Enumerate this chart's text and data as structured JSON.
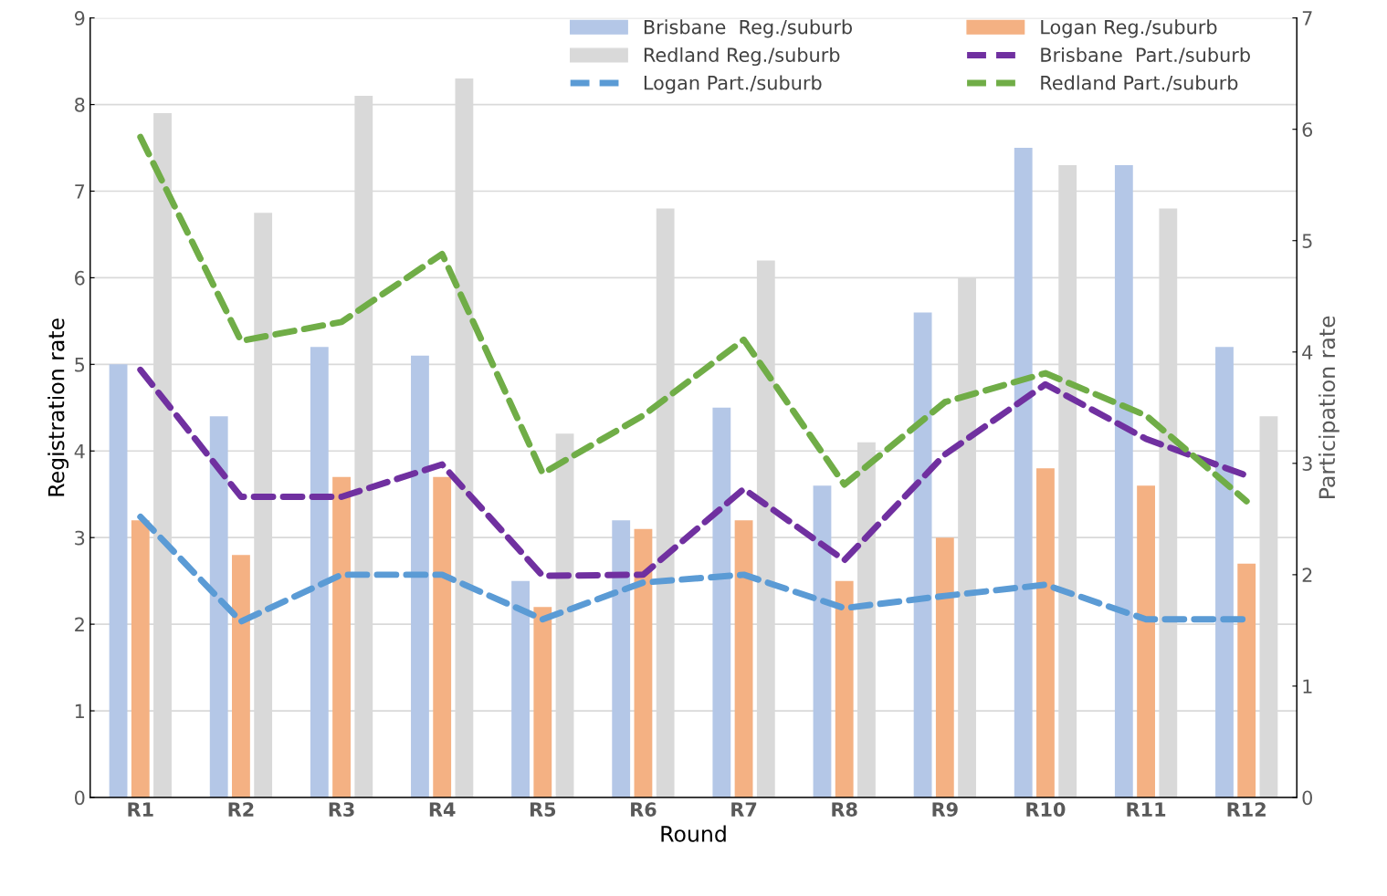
{
  "chart_data": {
    "type": "bar",
    "xlabel": "Round",
    "ylabel": "Registration rate",
    "y2label": "Participation rate",
    "categories": [
      "R1",
      "R2",
      "R3",
      "R4",
      "R5",
      "R6",
      "R7",
      "R8",
      "R9",
      "R10",
      "R11",
      "R12"
    ],
    "series": [
      {
        "name": "Brisbane  Reg./suburb",
        "color": "#b4c7e7",
        "values": [
          5.0,
          4.4,
          5.2,
          5.1,
          2.5,
          3.2,
          4.5,
          3.6,
          5.6,
          7.5,
          7.3,
          5.2
        ]
      },
      {
        "name": "Logan Reg./suburb",
        "color": "#f4b183",
        "values": [
          3.2,
          2.8,
          3.7,
          3.7,
          2.2,
          3.1,
          3.2,
          2.5,
          3.0,
          3.8,
          3.6,
          2.7
        ]
      },
      {
        "name": "Redland Reg./suburb",
        "color": "#d9d9d9",
        "values": [
          7.9,
          6.75,
          8.1,
          8.3,
          4.2,
          6.8,
          6.2,
          4.1,
          6.0,
          7.3,
          6.8,
          4.4
        ]
      },
      {
        "name": "Brisbane  Part./suburb",
        "color": "#7030a0",
        "type": "line",
        "axis": "y2",
        "line_style": "dashed",
        "values": [
          3.84,
          2.7,
          2.7,
          2.99,
          1.99,
          2.0,
          2.77,
          2.13,
          3.08,
          3.71,
          3.22,
          2.89
        ]
      },
      {
        "name": "Logan Part./suburb",
        "color": "#5b9bd5",
        "type": "line",
        "axis": "y2",
        "line_style": "dashed",
        "values": [
          2.52,
          1.58,
          2.0,
          2.0,
          1.6,
          1.93,
          2.0,
          1.7,
          1.81,
          1.91,
          1.6,
          1.6
        ]
      },
      {
        "name": "Redland Part./suburb",
        "color": "#70ad47",
        "type": "line",
        "axis": "y2",
        "line_style": "dashed",
        "values": [
          5.93,
          4.1,
          4.27,
          4.88,
          2.91,
          3.43,
          4.11,
          2.81,
          3.55,
          3.81,
          3.43,
          2.66
        ]
      }
    ],
    "ylim": [
      0,
      9
    ],
    "yticks": [
      0,
      1,
      2,
      3,
      4,
      5,
      6,
      7,
      8,
      9
    ],
    "y2lim": [
      0,
      7
    ],
    "y2ticks": [
      0,
      1,
      2,
      3,
      4,
      5,
      6,
      7
    ],
    "grid": "y",
    "legend": "top",
    "marker": "none"
  }
}
